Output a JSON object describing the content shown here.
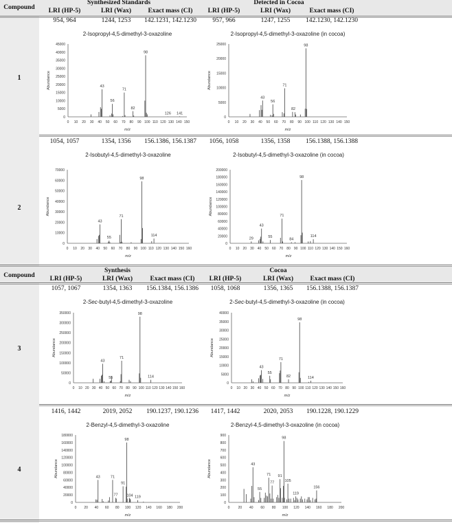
{
  "header1": {
    "compound": "Compound",
    "group_left": "Synthesized Standards",
    "group_right": "Detected in Cocoa",
    "cols": [
      "LRI (HP-5)",
      "LRI (Wax)",
      "Exact mass (CI)",
      "LRI (HP-5)",
      "LRI (Wax)",
      "Exact mass (CI)"
    ]
  },
  "header2": {
    "compound": "Compound",
    "group_left": "Synthesis",
    "group_right": "Cocoa",
    "cols": [
      "LRI (HP-5)",
      "LRI (Wax)",
      "Exact mass (CI)",
      "LRI (HP-5)",
      "LRI (Wax)",
      "Exact mass (CI)"
    ]
  },
  "rows": [
    {
      "compound": "1",
      "values": [
        "954, 964",
        "1244, 1253",
        "142.1231, 142.1230",
        "957, 966",
        "1247, 1255",
        "142.1230, 142.1230"
      ]
    },
    {
      "compound": "2",
      "values": [
        "1054, 1057",
        "1354, 1356",
        "156.1386, 156.1387",
        "1056, 1058",
        "1356, 1358",
        "156.1388, 156.1388"
      ]
    },
    {
      "compound": "3",
      "values": [
        "1057, 1067",
        "1354, 1363",
        "156.1384, 156.1386",
        "1058, 1068",
        "1356, 1365",
        "156.1388, 156.1387"
      ]
    },
    {
      "compound": "4",
      "values": [
        "1416, 1442",
        "2019, 2052",
        "190.1237, 190.1236",
        "1417, 1442",
        "2020, 2053",
        "190.1228, 190.1229"
      ]
    }
  ],
  "chart_data": [
    {
      "type": "bar",
      "title_parts": [
        {
          "text": "2-Isopropyl-4,5-dimethyl-3-oxazoline"
        }
      ],
      "xlabel": "m/z",
      "ylabel": "Abundance",
      "xlim": [
        0,
        150
      ],
      "xstep": 10,
      "ylim": [
        0,
        45000
      ],
      "ystep": 5000,
      "peaks": [
        [
          29,
          1500
        ],
        [
          39,
          3000
        ],
        [
          41,
          6000
        ],
        [
          42,
          5000
        ],
        [
          43,
          17000
        ],
        [
          53,
          1000
        ],
        [
          55,
          2000
        ],
        [
          56,
          8000
        ],
        [
          57,
          1500
        ],
        [
          69,
          500
        ],
        [
          71,
          15000
        ],
        [
          72,
          1000
        ],
        [
          82,
          3500
        ],
        [
          83,
          800
        ],
        [
          97,
          10000
        ],
        [
          98,
          38000
        ],
        [
          99,
          2500
        ],
        [
          100,
          1500
        ],
        [
          126,
          200
        ],
        [
          141,
          300
        ]
      ],
      "labels": [
        43,
        56,
        71,
        82,
        98,
        126,
        141
      ]
    },
    {
      "type": "bar",
      "title_parts": [
        {
          "text": "2-Isopropyl-4,5-dimethyl-3-oxazoline (in cocoa)"
        }
      ],
      "xlabel": "m/z",
      "ylabel": "Abundance",
      "xlim": [
        0,
        150
      ],
      "xstep": 10,
      "ylim": [
        0,
        25000
      ],
      "ystep": 5000,
      "peaks": [
        [
          27,
          1000
        ],
        [
          39,
          2300
        ],
        [
          41,
          4000
        ],
        [
          42,
          2400
        ],
        [
          43,
          5600
        ],
        [
          53,
          700
        ],
        [
          55,
          500
        ],
        [
          56,
          4300
        ],
        [
          57,
          1000
        ],
        [
          68,
          1600
        ],
        [
          70,
          1200
        ],
        [
          71,
          9800
        ],
        [
          81,
          1700
        ],
        [
          84,
          1600
        ],
        [
          85,
          800
        ],
        [
          91,
          800
        ],
        [
          97,
          2800
        ],
        [
          98,
          23500
        ],
        [
          99,
          2700
        ]
      ],
      "labels": [
        43,
        56,
        71,
        82,
        98
      ]
    },
    {
      "type": "bar",
      "title_parts": [
        {
          "text": "2-Isobutyl-4,5-dimethyl-3-oxazoline"
        }
      ],
      "xlabel": "m/z",
      "ylabel": "Abundance",
      "xlim": [
        0,
        160
      ],
      "xstep": 10,
      "ylim": [
        0,
        70000
      ],
      "ystep": 10000,
      "peaks": [
        [
          39,
          4000
        ],
        [
          41,
          7000
        ],
        [
          42,
          8000
        ],
        [
          43,
          18000
        ],
        [
          54,
          1500
        ],
        [
          55,
          2500
        ],
        [
          56,
          1000
        ],
        [
          69,
          8000
        ],
        [
          70,
          1000
        ],
        [
          71,
          23000
        ],
        [
          72,
          1500
        ],
        [
          84,
          1000
        ],
        [
          97,
          4000
        ],
        [
          98,
          59000
        ],
        [
          99,
          14500
        ],
        [
          111,
          2000
        ],
        [
          114,
          4500
        ]
      ],
      "labels": [
        43,
        55,
        71,
        98,
        114
      ]
    },
    {
      "type": "bar",
      "title_parts": [
        {
          "text": "2-Isobutyl-4,5-dimethyl-3-oxazoline (in cocoa)"
        }
      ],
      "xlabel": "m/z",
      "ylabel": "Abundance",
      "xlim": [
        0,
        160
      ],
      "xstep": 10,
      "ylim": [
        0,
        200000
      ],
      "ystep": 20000,
      "peaks": [
        [
          29,
          5000
        ],
        [
          39,
          8000
        ],
        [
          41,
          12000
        ],
        [
          42,
          18000
        ],
        [
          43,
          40000
        ],
        [
          45,
          5000
        ],
        [
          55,
          9000
        ],
        [
          69,
          15000
        ],
        [
          71,
          67000
        ],
        [
          72,
          5000
        ],
        [
          84,
          3000
        ],
        [
          89,
          3000
        ],
        [
          97,
          22000
        ],
        [
          98,
          172000
        ],
        [
          99,
          29000
        ],
        [
          107,
          5000
        ],
        [
          110,
          6000
        ],
        [
          114,
          11000
        ]
      ],
      "labels": [
        29,
        43,
        55,
        71,
        84,
        98,
        114
      ]
    },
    {
      "type": "bar",
      "title_parts": [
        {
          "text": "2-"
        },
        {
          "text": "Sec",
          "italic": true
        },
        {
          "text": "-butyl-4,5-dimethyl-3-oxazoline"
        }
      ],
      "xlabel": "m/z",
      "ylabel": "Abundance",
      "xlim": [
        0,
        160
      ],
      "xstep": 10,
      "ylim": [
        0,
        350000
      ],
      "ystep": 50000,
      "peaks": [
        [
          29,
          20000
        ],
        [
          39,
          20000
        ],
        [
          41,
          35000
        ],
        [
          42,
          40000
        ],
        [
          43,
          95000
        ],
        [
          45,
          8000
        ],
        [
          54,
          8000
        ],
        [
          55,
          10000
        ],
        [
          56,
          33000
        ],
        [
          69,
          8000
        ],
        [
          70,
          43000
        ],
        [
          71,
          110000
        ],
        [
          82,
          15000
        ],
        [
          84,
          8000
        ],
        [
          97,
          47000
        ],
        [
          98,
          330000
        ],
        [
          99,
          25000
        ],
        [
          114,
          15000
        ]
      ],
      "labels": [
        43,
        55,
        71,
        98,
        114
      ]
    },
    {
      "type": "bar",
      "title_parts": [
        {
          "text": "2-"
        },
        {
          "text": "Sec",
          "italic": true
        },
        {
          "text": "-butyl-4,5-dimethyl-3-oxazoline (in cocoa)"
        }
      ],
      "xlabel": "m/z",
      "ylabel": "Abundance",
      "xlim": [
        0,
        160
      ],
      "xstep": 10,
      "ylim": [
        0,
        40000
      ],
      "ystep": 5000,
      "peaks": [
        [
          29,
          2000
        ],
        [
          31,
          800
        ],
        [
          39,
          2600
        ],
        [
          41,
          4200
        ],
        [
          42,
          4500
        ],
        [
          43,
          7200
        ],
        [
          45,
          2200
        ],
        [
          55,
          4000
        ],
        [
          56,
          2000
        ],
        [
          69,
          5500
        ],
        [
          70,
          7000
        ],
        [
          71,
          11800
        ],
        [
          82,
          2000
        ],
        [
          97,
          6000
        ],
        [
          98,
          34500
        ],
        [
          99,
          2800
        ],
        [
          111,
          500
        ],
        [
          114,
          1200
        ]
      ],
      "labels": [
        43,
        55,
        71,
        82,
        98,
        114
      ]
    },
    {
      "type": "bar",
      "title_parts": [
        {
          "text": "2-Benzyl-4,5-dimethyl-3-oxazoline"
        }
      ],
      "xlabel": "m/z",
      "ylabel": "Abundance",
      "xlim": [
        0,
        200
      ],
      "xstep": 20,
      "ylim": [
        0,
        180000
      ],
      "ystep": 20000,
      "peaks": [
        [
          39,
          8000
        ],
        [
          41,
          7000
        ],
        [
          43,
          60000
        ],
        [
          51,
          9000
        ],
        [
          53,
          3000
        ],
        [
          63,
          5000
        ],
        [
          65,
          14000
        ],
        [
          71,
          60000
        ],
        [
          77,
          12000
        ],
        [
          78,
          10000
        ],
        [
          91,
          43000
        ],
        [
          97,
          42000
        ],
        [
          98,
          160000
        ],
        [
          99,
          10000
        ],
        [
          103,
          12000
        ],
        [
          104,
          10000
        ],
        [
          105,
          8000
        ],
        [
          119,
          6000
        ],
        [
          130,
          2000
        ]
      ],
      "labels": [
        43,
        71,
        77,
        91,
        98,
        104,
        119
      ]
    },
    {
      "type": "bar",
      "title_parts": [
        {
          "text": "2-Benzyl-4,5-dimethyl-3-oxazoline  (in cocoa)"
        }
      ],
      "xlabel": "m/z",
      "ylabel": "Abundance",
      "xlim": [
        0,
        200
      ],
      "xstep": 20,
      "ylim": [
        0,
        900
      ],
      "ystep": 100,
      "peaks": [
        [
          27,
          180
        ],
        [
          31,
          110
        ],
        [
          39,
          50
        ],
        [
          41,
          220
        ],
        [
          43,
          470
        ],
        [
          45,
          70
        ],
        [
          53,
          30
        ],
        [
          55,
          140
        ],
        [
          57,
          60
        ],
        [
          63,
          60
        ],
        [
          65,
          130
        ],
        [
          67,
          90
        ],
        [
          69,
          80
        ],
        [
          71,
          330
        ],
        [
          73,
          120
        ],
        [
          75,
          50
        ],
        [
          77,
          225
        ],
        [
          79,
          50
        ],
        [
          85,
          70
        ],
        [
          87,
          100
        ],
        [
          89,
          60
        ],
        [
          91,
          310
        ],
        [
          92,
          190
        ],
        [
          95,
          60
        ],
        [
          97,
          220
        ],
        [
          98,
          820
        ],
        [
          99,
          60
        ],
        [
          103,
          40
        ],
        [
          105,
          250
        ],
        [
          107,
          50
        ],
        [
          110,
          50
        ],
        [
          115,
          60
        ],
        [
          117,
          30
        ],
        [
          119,
          80
        ],
        [
          121,
          60
        ],
        [
          123,
          40
        ],
        [
          127,
          50
        ],
        [
          129,
          80
        ],
        [
          131,
          40
        ],
        [
          135,
          50
        ],
        [
          139,
          40
        ],
        [
          141,
          70
        ],
        [
          143,
          70
        ],
        [
          145,
          30
        ],
        [
          149,
          60
        ],
        [
          153,
          40
        ],
        [
          155,
          50
        ],
        [
          156,
          160
        ]
      ],
      "labels": [
        43,
        55,
        71,
        77,
        91,
        98,
        105,
        119,
        156
      ]
    }
  ]
}
